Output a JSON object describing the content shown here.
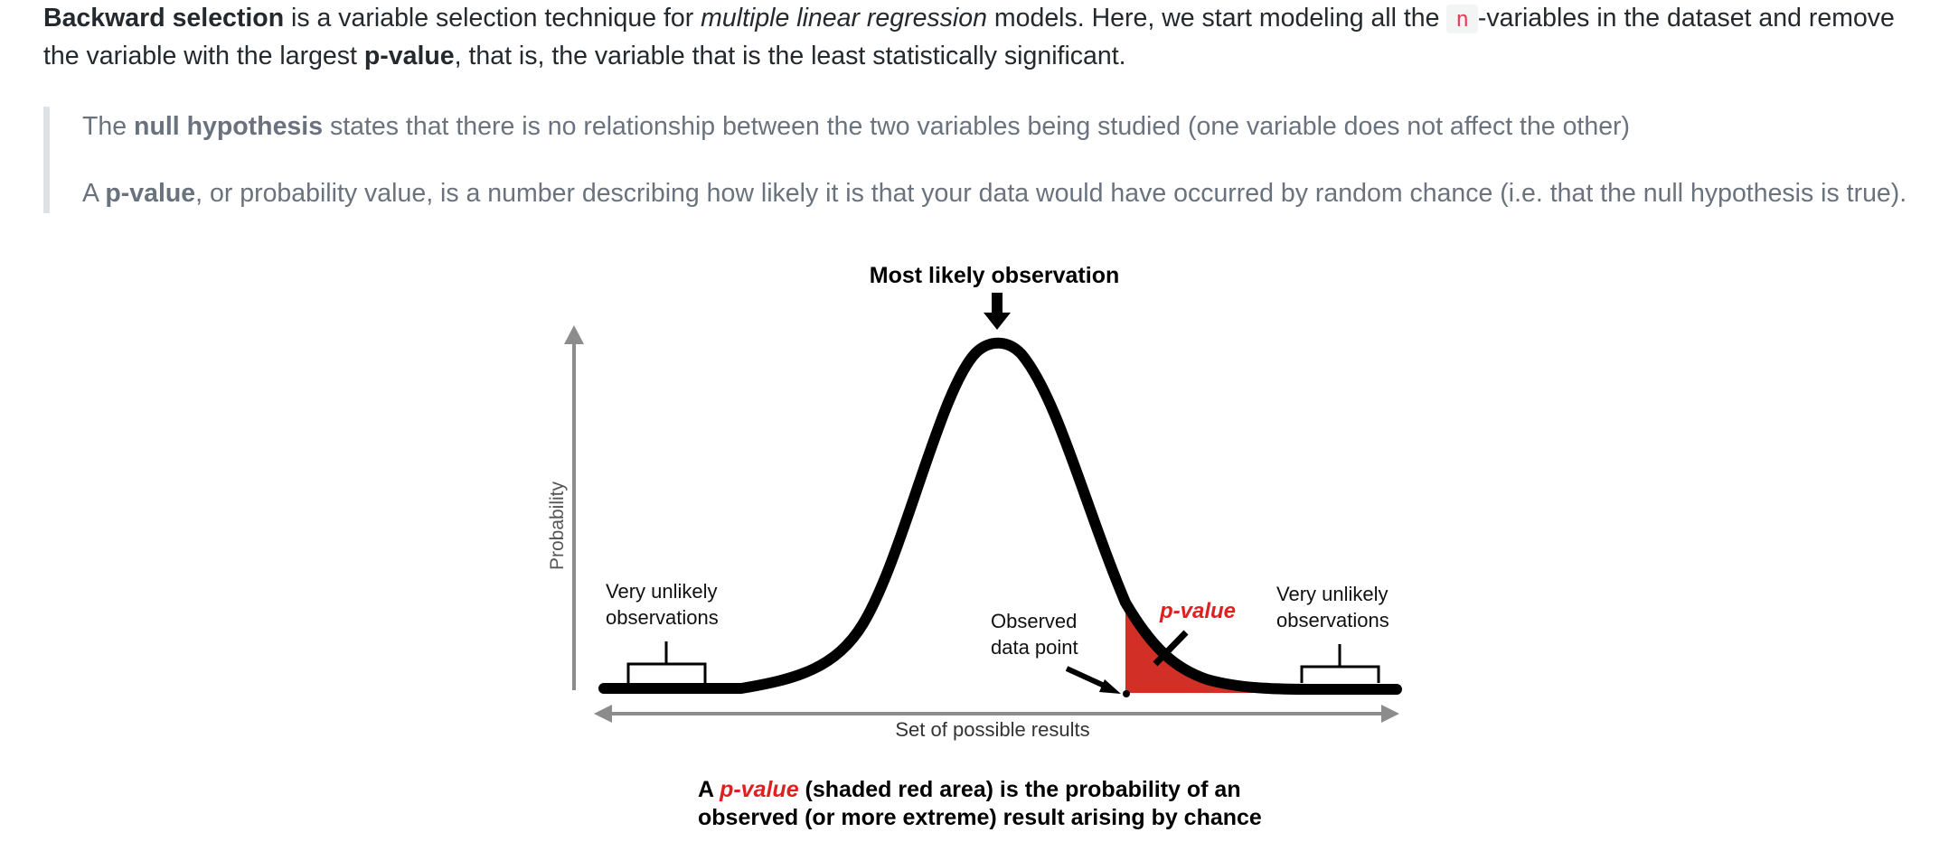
{
  "intro": {
    "term": "Backward selection",
    "text1": " is a variable selection technique for ",
    "italic": "multiple linear regression",
    "text2": " models. Here, we start modeling all the ",
    "code": "n",
    "text3": "-variables in the dataset and remove the variable with the largest ",
    "bold2": "p-value",
    "text4": ", that is, the variable that is the least statistically significant."
  },
  "quote": {
    "p1_pre": "The ",
    "p1_bold": "null hypothesis",
    "p1_post": " states that there is no relationship between the two variables being studied (one variable does not affect the other)",
    "p2_pre": "A ",
    "p2_bold": "p-value",
    "p2_post": ", or probability value, is a number describing how likely it is that your data would have occurred by random chance (i.e. that the null hypothesis is true)."
  },
  "figure": {
    "title": "Most likely observation",
    "y_axis_label": "Probability",
    "x_axis_label": "Set of possible results",
    "left_label_line1": "Very unlikely",
    "left_label_line2": "observations",
    "right_label_line1": "Very unlikely",
    "right_label_line2": "observations",
    "observed_line1": "Observed",
    "observed_line2": "data point",
    "pvalue_label": "p-value",
    "caption_line1_pre": "A ",
    "caption_line1_pvalue": "p-value",
    "caption_line1_post": " (shaded red area) is the probability of an",
    "caption_line2": "observed (or more extreme) result arising by chance",
    "colors": {
      "curve": "#000000",
      "shade": "#d22f27",
      "axis": "#8c8c8c",
      "pvalue_text": "#e02020"
    }
  }
}
